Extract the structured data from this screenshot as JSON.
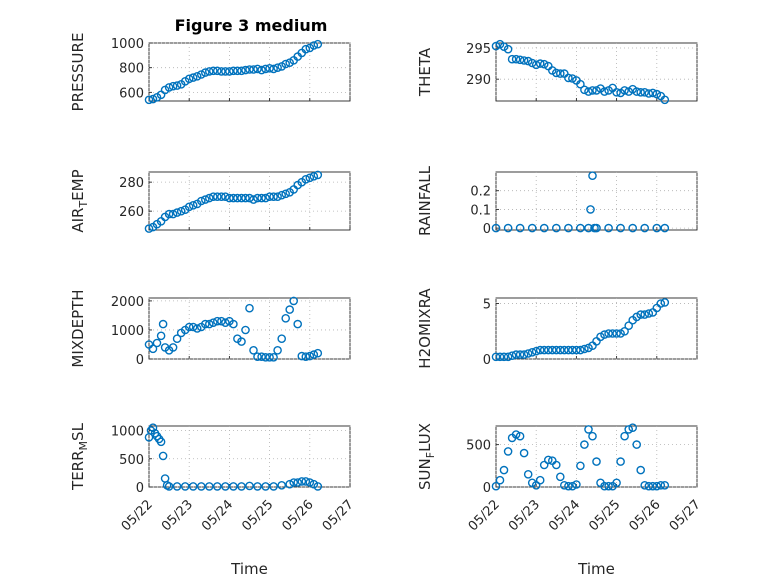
{
  "title": "Figure 3 medium",
  "chart_data": [
    {
      "type": "scatter",
      "ylabel": "PRESSURE",
      "ylim": [
        530,
        1000
      ],
      "yticks": [
        600,
        800,
        1000
      ],
      "x": [
        0,
        0.1,
        0.2,
        0.3,
        0.4,
        0.5,
        0.6,
        0.7,
        0.8,
        0.9,
        1.0,
        1.1,
        1.2,
        1.3,
        1.4,
        1.5,
        1.6,
        1.7,
        1.8,
        1.9,
        2.0,
        2.1,
        2.2,
        2.3,
        2.4,
        2.5,
        2.6,
        2.7,
        2.8,
        2.9,
        3.0,
        3.1,
        3.2,
        3.3,
        3.4,
        3.5,
        3.6,
        3.7,
        3.8,
        3.9,
        4.0,
        4.1,
        4.2
      ],
      "y": [
        540,
        545,
        560,
        580,
        620,
        640,
        650,
        655,
        665,
        690,
        710,
        720,
        730,
        745,
        760,
        770,
        775,
        775,
        770,
        770,
        770,
        775,
        775,
        775,
        780,
        785,
        785,
        790,
        780,
        790,
        795,
        790,
        800,
        810,
        830,
        840,
        860,
        890,
        920,
        950,
        960,
        980,
        990
      ]
    },
    {
      "type": "scatter",
      "ylabel": "THETA",
      "ylim": [
        286.5,
        295.8
      ],
      "yticks": [
        290,
        295
      ],
      "x": [
        0,
        0.1,
        0.2,
        0.3,
        0.4,
        0.5,
        0.6,
        0.7,
        0.8,
        0.9,
        1.0,
        1.1,
        1.2,
        1.3,
        1.4,
        1.5,
        1.6,
        1.7,
        1.8,
        1.9,
        2.0,
        2.1,
        2.2,
        2.3,
        2.4,
        2.5,
        2.6,
        2.7,
        2.8,
        2.9,
        3.0,
        3.1,
        3.2,
        3.3,
        3.4,
        3.5,
        3.6,
        3.7,
        3.8,
        3.9,
        4.0,
        4.1,
        4.2
      ],
      "y": [
        295.3,
        295.6,
        295.2,
        294.8,
        293.2,
        293.2,
        293.1,
        293.0,
        292.9,
        292.6,
        292.3,
        292.5,
        292.4,
        292.1,
        291.4,
        291.0,
        290.9,
        290.9,
        290.2,
        290.1,
        289.8,
        289.2,
        288.3,
        288.0,
        288.2,
        288.2,
        288.5,
        288.0,
        288.2,
        288.6,
        287.9,
        287.8,
        288.2,
        288.0,
        288.4,
        288.0,
        287.9,
        287.9,
        287.7,
        287.8,
        287.6,
        287.3,
        286.7
      ]
    },
    {
      "type": "scatter",
      "ylabel": "AIR_TEMP",
      "ylim": [
        247,
        287
      ],
      "yticks": [
        260,
        280
      ],
      "x": [
        0,
        0.1,
        0.2,
        0.3,
        0.4,
        0.5,
        0.6,
        0.7,
        0.8,
        0.9,
        1.0,
        1.1,
        1.2,
        1.3,
        1.4,
        1.5,
        1.6,
        1.7,
        1.8,
        1.9,
        2.0,
        2.1,
        2.2,
        2.3,
        2.4,
        2.5,
        2.6,
        2.7,
        2.8,
        2.9,
        3.0,
        3.1,
        3.2,
        3.3,
        3.4,
        3.5,
        3.6,
        3.7,
        3.8,
        3.9,
        4.0,
        4.1,
        4.2
      ],
      "y": [
        248,
        249,
        251,
        253,
        256,
        258,
        258,
        259,
        260,
        261,
        263,
        264,
        265,
        267,
        268,
        269,
        270,
        270,
        270,
        270,
        269,
        269,
        269,
        269,
        269,
        269,
        268,
        269,
        269,
        269,
        270,
        270,
        270,
        271,
        272,
        273,
        275,
        278,
        280,
        282,
        283,
        284,
        285
      ]
    },
    {
      "type": "scatter",
      "ylabel": "RAINFALL",
      "ylim": [
        -0.01,
        0.3
      ],
      "yticks": [
        0,
        0.1,
        0.2
      ],
      "x": [
        0,
        0.3,
        0.6,
        0.9,
        1.2,
        1.5,
        1.8,
        2.1,
        2.3,
        2.35,
        2.4,
        2.45,
        2.5,
        2.8,
        3.1,
        3.4,
        3.7,
        4.0,
        4.2
      ],
      "y": [
        0,
        0,
        0,
        0,
        0,
        0,
        0,
        0,
        0,
        0.1,
        0.28,
        0,
        0,
        0,
        0,
        0,
        0,
        0,
        0
      ]
    },
    {
      "type": "scatter",
      "ylabel": "MIXDEPTH",
      "ylim": [
        0,
        2100
      ],
      "yticks": [
        0,
        1000,
        2000
      ],
      "x": [
        0,
        0.1,
        0.2,
        0.3,
        0.35,
        0.4,
        0.5,
        0.6,
        0.7,
        0.8,
        0.9,
        1.0,
        1.1,
        1.2,
        1.3,
        1.4,
        1.5,
        1.6,
        1.7,
        1.8,
        1.9,
        2.0,
        2.1,
        2.2,
        2.3,
        2.4,
        2.5,
        2.6,
        2.7,
        2.8,
        2.9,
        3.0,
        3.1,
        3.2,
        3.3,
        3.4,
        3.5,
        3.6,
        3.7,
        3.8,
        3.9,
        4.0,
        4.1,
        4.2
      ],
      "y": [
        500,
        350,
        550,
        800,
        1200,
        400,
        300,
        400,
        700,
        900,
        1000,
        1100,
        1100,
        1050,
        1100,
        1200,
        1200,
        1250,
        1300,
        1300,
        1250,
        1300,
        1200,
        700,
        600,
        1000,
        1750,
        300,
        80,
        80,
        60,
        60,
        60,
        300,
        700,
        1400,
        1700,
        2000,
        1200,
        100,
        80,
        100,
        150,
        200
      ]
    },
    {
      "type": "scatter",
      "ylabel": "H2OMIXRA",
      "ylim": [
        0,
        5.5
      ],
      "yticks": [
        0,
        5
      ],
      "x": [
        0,
        0.1,
        0.2,
        0.3,
        0.4,
        0.5,
        0.6,
        0.7,
        0.8,
        0.9,
        1.0,
        1.1,
        1.2,
        1.3,
        1.4,
        1.5,
        1.6,
        1.7,
        1.8,
        1.9,
        2.0,
        2.1,
        2.2,
        2.3,
        2.4,
        2.5,
        2.6,
        2.7,
        2.8,
        2.9,
        3.0,
        3.1,
        3.2,
        3.3,
        3.4,
        3.5,
        3.6,
        3.7,
        3.8,
        3.9,
        4.0,
        4.1,
        4.2
      ],
      "y": [
        0.2,
        0.2,
        0.2,
        0.2,
        0.3,
        0.4,
        0.4,
        0.4,
        0.5,
        0.6,
        0.7,
        0.8,
        0.8,
        0.8,
        0.8,
        0.8,
        0.8,
        0.8,
        0.8,
        0.8,
        0.8,
        0.8,
        0.9,
        1.0,
        1.2,
        1.6,
        2.0,
        2.2,
        2.3,
        2.3,
        2.3,
        2.3,
        2.5,
        3.0,
        3.5,
        3.8,
        4.0,
        4.0,
        4.1,
        4.2,
        4.6,
        5.0,
        5.1
      ]
    },
    {
      "type": "scatter",
      "ylabel": "TERR_MSL",
      "ylim": [
        0,
        1080
      ],
      "yticks": [
        0,
        500,
        1000
      ],
      "x": [
        0,
        0.05,
        0.1,
        0.15,
        0.2,
        0.25,
        0.3,
        0.35,
        0.4,
        0.45,
        0.5,
        0.7,
        0.9,
        1.1,
        1.3,
        1.5,
        1.7,
        1.9,
        2.1,
        2.3,
        2.5,
        2.7,
        2.9,
        3.1,
        3.3,
        3.5,
        3.6,
        3.7,
        3.8,
        3.9,
        4.0,
        4.1,
        4.2
      ],
      "y": [
        880,
        1000,
        1050,
        950,
        900,
        850,
        800,
        550,
        150,
        30,
        10,
        10,
        10,
        10,
        10,
        10,
        10,
        10,
        10,
        10,
        20,
        10,
        10,
        10,
        30,
        50,
        80,
        80,
        100,
        100,
        80,
        50,
        10
      ]
    },
    {
      "type": "scatter",
      "ylabel": "SUN_FLUX",
      "ylim": [
        0,
        720
      ],
      "yticks": [
        0,
        500
      ],
      "x": [
        0,
        0.1,
        0.2,
        0.3,
        0.4,
        0.5,
        0.6,
        0.7,
        0.8,
        0.9,
        1.0,
        1.1,
        1.2,
        1.3,
        1.4,
        1.5,
        1.6,
        1.7,
        1.8,
        1.9,
        2.0,
        2.1,
        2.2,
        2.3,
        2.4,
        2.5,
        2.6,
        2.7,
        2.8,
        2.9,
        3.0,
        3.1,
        3.2,
        3.3,
        3.4,
        3.5,
        3.6,
        3.7,
        3.8,
        3.9,
        4.0,
        4.1,
        4.2
      ],
      "y": [
        10,
        80,
        200,
        420,
        580,
        620,
        600,
        400,
        150,
        50,
        20,
        80,
        260,
        320,
        310,
        260,
        120,
        20,
        10,
        10,
        30,
        250,
        500,
        680,
        600,
        300,
        50,
        10,
        10,
        10,
        50,
        300,
        600,
        680,
        700,
        500,
        200,
        20,
        10,
        10,
        10,
        20,
        20
      ]
    }
  ],
  "x_axis": {
    "label": "Time",
    "ticklabels": [
      "05/22",
      "05/23",
      "05/24",
      "05/25",
      "05/26",
      "05/27"
    ]
  },
  "panels": [
    {
      "ylabel_main": "PRESSURE",
      "ylabel_sub": ""
    },
    {
      "ylabel_main": "THETA",
      "ylabel_sub": ""
    },
    {
      "ylabel_main": "AIR",
      "ylabel_sub": "T",
      "ylabel_rest": "EMP"
    },
    {
      "ylabel_main": "RAINFALL",
      "ylabel_sub": ""
    },
    {
      "ylabel_main": "MIXDEPTH",
      "ylabel_sub": ""
    },
    {
      "ylabel_main": "H2OMIXRA",
      "ylabel_sub": ""
    },
    {
      "ylabel_main": "TERR",
      "ylabel_sub": "M",
      "ylabel_rest": "SL"
    },
    {
      "ylabel_main": "SUN",
      "ylabel_sub": "F",
      "ylabel_rest": "LUX"
    }
  ]
}
